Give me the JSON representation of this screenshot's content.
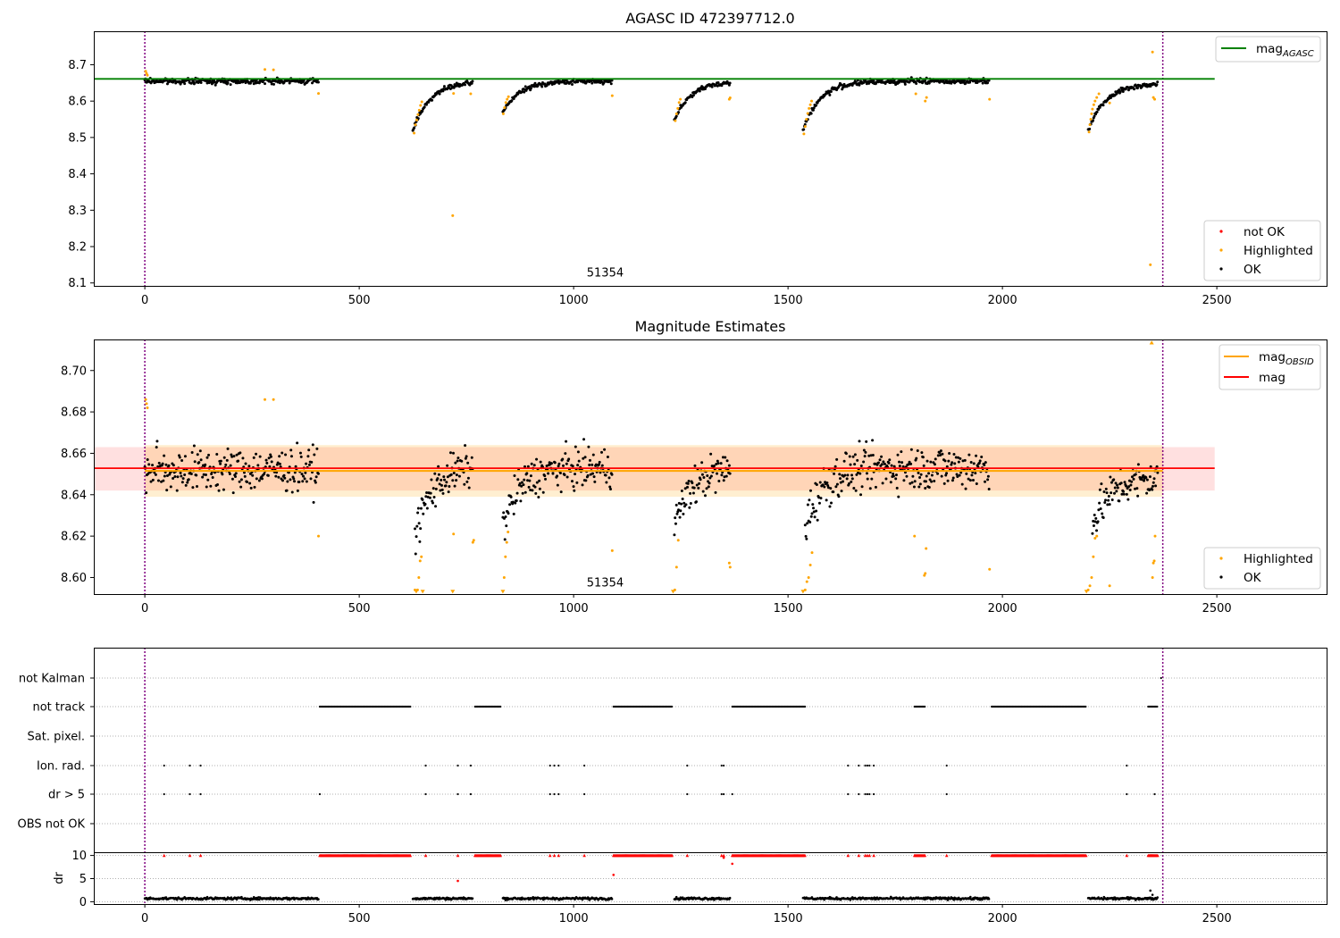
{
  "chart_data": [
    {
      "type": "scatter",
      "title": "AGASC ID 472397712.0",
      "xlim": [
        -119,
        2756
      ],
      "ylim": [
        8.092,
        8.792
      ],
      "xticks": [
        0,
        500,
        1000,
        1500,
        2000,
        2500
      ],
      "yticks": [
        8.1,
        8.2,
        8.3,
        8.4,
        8.5,
        8.6,
        8.7
      ],
      "annotation": {
        "x": 1184,
        "y": 8.12,
        "text": "51354"
      },
      "vlines": [
        0,
        2374
      ],
      "series": [
        {
          "name": "mag_AGASC",
          "kind": "hline",
          "y": 8.661,
          "x_range": [
            -119,
            2495
          ],
          "color": "#008000"
        }
      ],
      "legend_lines": [
        {
          "name": "mag",
          "sub": "AGASC",
          "color": "#008000"
        }
      ],
      "legend_points": [
        {
          "name": "not OK",
          "color": "#ff0000"
        },
        {
          "name": "Highlighted",
          "color": "#ffa500"
        },
        {
          "name": "OK",
          "color": "#000000"
        }
      ],
      "segments": [
        {
          "x0": 0,
          "x1": 405,
          "kind": "flat",
          "base": 8.655,
          "noise": 0.007
        },
        {
          "x0": 625,
          "x1": 765,
          "kind": "rise",
          "start": 8.52,
          "base": 8.653,
          "noise": 0.006
        },
        {
          "x0": 835,
          "x1": 1090,
          "kind": "rise",
          "start": 8.57,
          "base": 8.655,
          "noise": 0.006
        },
        {
          "x0": 1235,
          "x1": 1365,
          "kind": "rise",
          "start": 8.55,
          "base": 8.655,
          "noise": 0.006
        },
        {
          "x0": 1535,
          "x1": 1970,
          "kind": "rise",
          "start": 8.52,
          "base": 8.655,
          "noise": 0.007
        },
        {
          "x0": 2200,
          "x1": 2362,
          "kind": "rise",
          "start": 8.52,
          "base": 8.648,
          "noise": 0.006
        }
      ],
      "highlighted": [
        [
          2,
          8.682
        ],
        [
          4,
          8.676
        ],
        [
          6,
          8.671
        ],
        [
          280,
          8.687
        ],
        [
          300,
          8.686
        ],
        [
          405,
          8.621
        ],
        [
          628,
          8.512
        ],
        [
          631,
          8.535
        ],
        [
          634,
          8.548
        ],
        [
          637,
          8.563
        ],
        [
          640,
          8.575
        ],
        [
          643,
          8.588
        ],
        [
          646,
          8.598
        ],
        [
          718,
          8.285
        ],
        [
          720,
          8.621
        ],
        [
          760,
          8.62
        ],
        [
          836,
          8.565
        ],
        [
          839,
          8.582
        ],
        [
          842,
          8.596
        ],
        [
          845,
          8.605
        ],
        [
          848,
          8.612
        ],
        [
          1090,
          8.615
        ],
        [
          1237,
          8.546
        ],
        [
          1240,
          8.565
        ],
        [
          1243,
          8.58
        ],
        [
          1246,
          8.596
        ],
        [
          1249,
          8.605
        ],
        [
          1363,
          8.605
        ],
        [
          1365,
          8.609
        ],
        [
          1537,
          8.51
        ],
        [
          1540,
          8.53
        ],
        [
          1543,
          8.55
        ],
        [
          1546,
          8.566
        ],
        [
          1549,
          8.58
        ],
        [
          1552,
          8.59
        ],
        [
          1555,
          8.6
        ],
        [
          1798,
          8.62
        ],
        [
          1820,
          8.6
        ],
        [
          1823,
          8.61
        ],
        [
          1970,
          8.605
        ],
        [
          2202,
          8.515
        ],
        [
          2204,
          8.535
        ],
        [
          2206,
          8.55
        ],
        [
          2208,
          8.565
        ],
        [
          2210,
          8.578
        ],
        [
          2213,
          8.59
        ],
        [
          2216,
          8.6
        ],
        [
          2220,
          8.61
        ],
        [
          2225,
          8.62
        ],
        [
          2250,
          8.595
        ],
        [
          2345,
          8.15
        ],
        [
          2350,
          8.735
        ],
        [
          2352,
          8.61
        ],
        [
          2355,
          8.605
        ]
      ]
    },
    {
      "type": "scatter",
      "title": "Magnitude Estimates",
      "xlim": [
        -119,
        2756
      ],
      "ylim": [
        8.592,
        8.715
      ],
      "xticks": [
        0,
        500,
        1000,
        1500,
        2000,
        2500
      ],
      "yticks": [
        8.6,
        8.62,
        8.64,
        8.66,
        8.68,
        8.7
      ],
      "ytick_labels": [
        "8.60",
        "8.62",
        "8.64",
        "8.66",
        "8.68",
        "8.70"
      ],
      "annotation": {
        "x": 1184,
        "y": 8.596,
        "text": "51354"
      },
      "vlines": [
        0,
        2374
      ],
      "series": [
        {
          "name": "mag_OBSID",
          "kind": "hline",
          "y": 8.6515,
          "x_range": [
            0,
            2374
          ],
          "color": "#ffa500",
          "band": [
            8.639,
            8.664
          ]
        },
        {
          "name": "mag",
          "kind": "hline",
          "y": 8.6528,
          "x_range": [
            -119,
            2495
          ],
          "color": "#ff0000",
          "band": [
            8.642,
            8.663
          ]
        }
      ],
      "legend_lines": [
        {
          "name": "mag",
          "sub": "OBSID",
          "color": "#ffa500"
        },
        {
          "name": "mag",
          "sub": "",
          "color": "#ff0000"
        }
      ],
      "legend_points": [
        {
          "name": "Highlighted",
          "color": "#ffa500"
        },
        {
          "name": "OK",
          "color": "#000000"
        }
      ],
      "segments": [
        {
          "x0": 0,
          "x1": 405,
          "kind": "flat",
          "base": 8.652,
          "noise": 0.01
        },
        {
          "x0": 630,
          "x1": 765,
          "kind": "rise",
          "start": 8.62,
          "base": 8.654,
          "noise": 0.009
        },
        {
          "x0": 835,
          "x1": 1090,
          "kind": "rise",
          "start": 8.625,
          "base": 8.653,
          "noise": 0.009
        },
        {
          "x0": 1235,
          "x1": 1365,
          "kind": "rise",
          "start": 8.625,
          "base": 8.653,
          "noise": 0.009
        },
        {
          "x0": 1540,
          "x1": 1970,
          "kind": "rise",
          "start": 8.625,
          "base": 8.653,
          "noise": 0.01
        },
        {
          "x0": 2210,
          "x1": 2362,
          "kind": "rise",
          "start": 8.625,
          "base": 8.648,
          "noise": 0.009
        }
      ],
      "highlighted": [
        [
          2,
          8.686
        ],
        [
          4,
          8.684
        ],
        [
          6,
          8.682
        ],
        [
          280,
          8.686
        ],
        [
          300,
          8.686
        ],
        [
          405,
          8.62
        ],
        [
          630,
          8.594
        ],
        [
          633,
          8.593
        ],
        [
          636,
          8.594
        ],
        [
          639,
          8.6
        ],
        [
          642,
          8.608
        ],
        [
          645,
          8.61
        ],
        [
          648,
          8.593
        ],
        [
          718,
          8.593
        ],
        [
          720,
          8.621
        ],
        [
          765,
          8.617
        ],
        [
          767,
          8.618
        ],
        [
          835,
          8.593
        ],
        [
          838,
          8.6
        ],
        [
          841,
          8.61
        ],
        [
          844,
          8.617
        ],
        [
          847,
          8.622
        ],
        [
          1090,
          8.613
        ],
        [
          1232,
          8.593
        ],
        [
          1236,
          8.594
        ],
        [
          1240,
          8.605
        ],
        [
          1244,
          8.618
        ],
        [
          1363,
          8.607
        ],
        [
          1365,
          8.605
        ],
        [
          1535,
          8.593
        ],
        [
          1540,
          8.594
        ],
        [
          1544,
          8.598
        ],
        [
          1548,
          8.6
        ],
        [
          1552,
          8.606
        ],
        [
          1556,
          8.612
        ],
        [
          1795,
          8.62
        ],
        [
          1818,
          8.601
        ],
        [
          1820,
          8.602
        ],
        [
          1822,
          8.614
        ],
        [
          1970,
          8.604
        ],
        [
          2196,
          8.593
        ],
        [
          2200,
          8.594
        ],
        [
          2204,
          8.596
        ],
        [
          2208,
          8.6
        ],
        [
          2212,
          8.61
        ],
        [
          2216,
          8.619
        ],
        [
          2220,
          8.62
        ],
        [
          2250,
          8.596
        ],
        [
          2348,
          8.713
        ],
        [
          2350,
          8.6
        ],
        [
          2352,
          8.607
        ],
        [
          2354,
          8.608
        ],
        [
          2356,
          8.62
        ]
      ]
    },
    {
      "type": "scatter",
      "title": "",
      "xlim": [
        -119,
        2756
      ],
      "xticks": [
        0,
        500,
        1000,
        1500,
        2000,
        2500
      ],
      "vlines": [
        0,
        2374
      ],
      "flag_rows": [
        "not Kalman",
        "not track",
        "Sat. pixel.",
        "Ion. rad.",
        "dr > 5",
        "OBS not OK"
      ],
      "flag_ranges": {
        "not track": [
          [
            408,
            620
          ],
          [
            770,
            830
          ],
          [
            1093,
            1230
          ],
          [
            1370,
            1540
          ],
          [
            1795,
            1820
          ],
          [
            1975,
            2195
          ],
          [
            2340,
            2362
          ]
        ]
      },
      "flag_points": {
        "Ion. rad.": [
          45,
          105,
          130,
          655,
          730,
          760,
          945,
          955,
          965,
          1025,
          1265,
          1345,
          1350,
          1640,
          1665,
          1680,
          1685,
          1690,
          1700,
          1870,
          2290
        ],
        "dr > 5": [
          45,
          105,
          130,
          408,
          655,
          730,
          760,
          945,
          955,
          965,
          1025,
          1265,
          1345,
          1350,
          1370,
          1640,
          1665,
          1680,
          1685,
          1690,
          1700,
          1870,
          2290,
          2355
        ],
        "not Kalman": [
          2370
        ]
      },
      "dr_panel": {
        "ylabel": "dr",
        "ylim": [
          -0.5,
          10.5
        ],
        "yticks": [
          0,
          5,
          10
        ],
        "red_clipped": {
          "y": 10,
          "ranges": [
            [
              408,
              620
            ],
            [
              770,
              830
            ],
            [
              1093,
              1230
            ],
            [
              1370,
              1540
            ],
            [
              1795,
              1820
            ],
            [
              1975,
              2195
            ],
            [
              2340,
              2362
            ]
          ],
          "points": [
            45,
            105,
            130,
            655,
            730,
            945,
            955,
            965,
            1025,
            1265,
            1345,
            1350,
            1640,
            1665,
            1680,
            1685,
            1690,
            1700,
            1870,
            2290
          ]
        },
        "red_points": [
          [
            730,
            4.5
          ],
          [
            1093,
            5.8
          ],
          [
            1370,
            8.2
          ],
          [
            1350,
            9.5
          ]
        ],
        "segments": [
          [
            0,
            405
          ],
          [
            625,
            765
          ],
          [
            835,
            1090
          ],
          [
            1235,
            1365
          ],
          [
            1535,
            1970
          ],
          [
            2200,
            2362
          ]
        ],
        "dr_level": 0.7,
        "outliers": [
          [
            2345,
            2.4
          ],
          [
            2350,
            1.5
          ]
        ]
      }
    }
  ]
}
